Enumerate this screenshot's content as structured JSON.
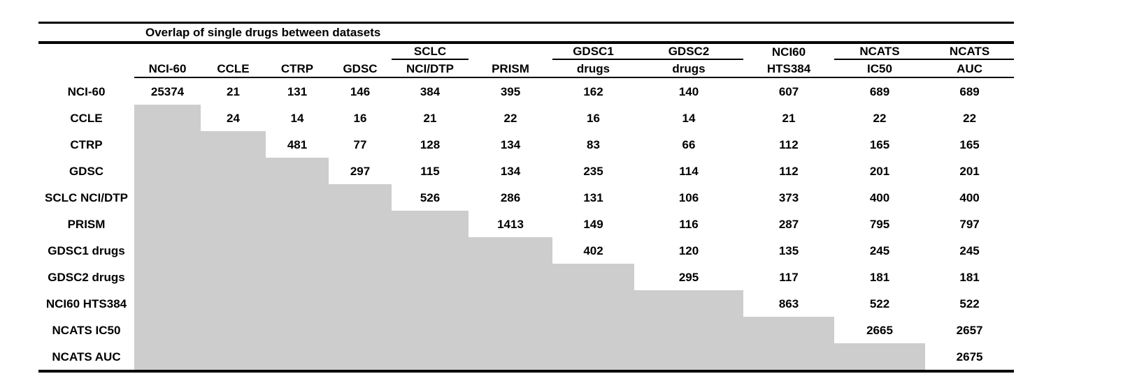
{
  "title": "Overlap of single drugs between datasets",
  "table": {
    "gray_color": "#cdcdcd",
    "column_groups": [
      {
        "label": "SCLC",
        "column": "SCLC NCI/DTP",
        "underline": true
      },
      {
        "label": "GDSC1",
        "column": "GDSC1 drugs",
        "underline": true
      },
      {
        "label": "GDSC2",
        "column": "GDSC2 drugs",
        "underline": true
      },
      {
        "label": "NCI60",
        "column": "NCI60 HTS384",
        "underline": false
      },
      {
        "label": "NCATS",
        "column": "NCATS IC50",
        "underline": true
      },
      {
        "label": "NCATS",
        "column": "NCATS AUC",
        "underline": true
      }
    ],
    "column_headers": [
      "NCI-60",
      "CCLE",
      "CTRP",
      "GDSC",
      "NCI/DTP",
      "PRISM",
      "drugs",
      "drugs",
      "HTS384",
      "IC50",
      "AUC"
    ],
    "rows": [
      {
        "label": "NCI-60",
        "values": [
          25374,
          21,
          131,
          146,
          384,
          395,
          162,
          140,
          607,
          689,
          689
        ]
      },
      {
        "label": "CCLE",
        "values": [
          24,
          14,
          16,
          21,
          22,
          16,
          14,
          21,
          22,
          22
        ]
      },
      {
        "label": "CTRP",
        "values": [
          481,
          77,
          128,
          134,
          83,
          66,
          112,
          165,
          165
        ]
      },
      {
        "label": "GDSC",
        "values": [
          297,
          115,
          134,
          235,
          114,
          112,
          201,
          201
        ]
      },
      {
        "label": "SCLC NCI/DTP",
        "values": [
          526,
          286,
          131,
          106,
          373,
          400,
          400
        ]
      },
      {
        "label": "PRISM",
        "values": [
          1413,
          149,
          116,
          287,
          795,
          797
        ]
      },
      {
        "label": "GDSC1 drugs",
        "values": [
          402,
          120,
          135,
          245,
          245
        ]
      },
      {
        "label": "GDSC2 drugs",
        "values": [
          295,
          117,
          181,
          181
        ]
      },
      {
        "label": "NCI60 HTS384",
        "values": [
          863,
          522,
          522
        ]
      },
      {
        "label": "NCATS IC50",
        "values": [
          2665,
          2657
        ]
      },
      {
        "label": "NCATS AUC",
        "values": [
          2675
        ]
      }
    ]
  }
}
